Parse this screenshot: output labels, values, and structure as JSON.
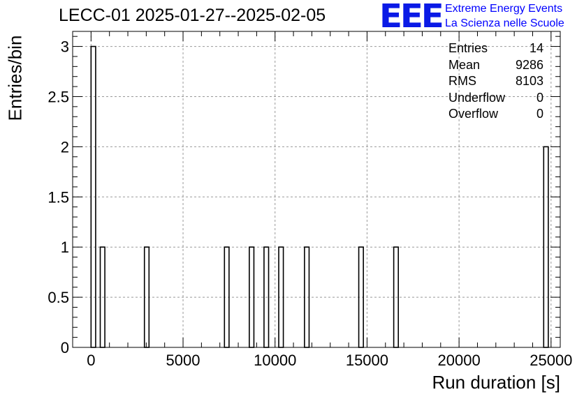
{
  "chart_data": {
    "type": "bar",
    "title": "LECC-01 2025-01-27--2025-02-05",
    "xlabel": "Run duration [s]",
    "ylabel": "Entries/bin",
    "xlim": [
      -1000,
      25500
    ],
    "ylim": [
      0,
      3.15
    ],
    "bin_width": 250,
    "x_ticks": [
      "0",
      "5000",
      "10000",
      "15000",
      "20000",
      "25000"
    ],
    "y_ticks": [
      "0",
      "0.5",
      "1",
      "1.5",
      "2",
      "2.5",
      "3"
    ],
    "grid": true,
    "bins": [
      {
        "x": 0,
        "value": 3
      },
      {
        "x": 500,
        "value": 1
      },
      {
        "x": 2900,
        "value": 1
      },
      {
        "x": 7250,
        "value": 1
      },
      {
        "x": 8600,
        "value": 1
      },
      {
        "x": 9400,
        "value": 1
      },
      {
        "x": 10200,
        "value": 1
      },
      {
        "x": 11600,
        "value": 1
      },
      {
        "x": 14550,
        "value": 1
      },
      {
        "x": 16450,
        "value": 1
      },
      {
        "x": 24600,
        "value": 2
      }
    ]
  },
  "logo": {
    "text": "EEE",
    "line1": "Extreme Energy Events",
    "line2": "La Scienza nelle Scuole"
  },
  "stats": [
    {
      "label": "Entries",
      "value": "14"
    },
    {
      "label": "Mean",
      "value": "9286"
    },
    {
      "label": "RMS",
      "value": "8103"
    },
    {
      "label": "Underflow",
      "value": "0"
    },
    {
      "label": "Overflow",
      "value": "0"
    }
  ],
  "colors": {
    "logo": "#0a1ae6",
    "grid": "#999999",
    "bars": "#000000"
  }
}
